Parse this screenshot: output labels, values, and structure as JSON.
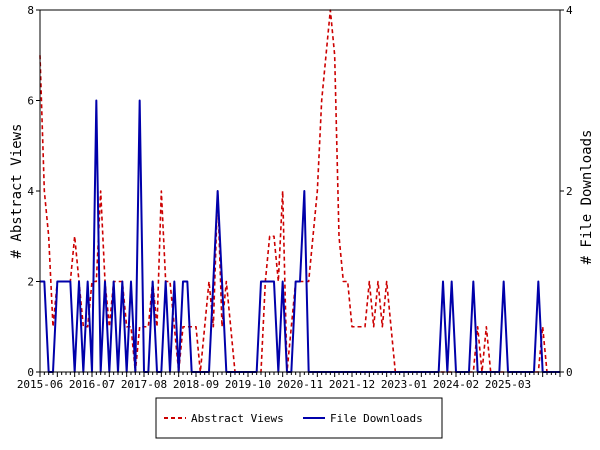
{
  "chart_data": {
    "type": "line",
    "title": "",
    "xlabel": "",
    "ylabel": "# Abstract Views",
    "y2label": "# File Downloads",
    "x_tick_labels": [
      "2015-06",
      "2016-07",
      "2017-08",
      "2018-09",
      "2019-10",
      "2020-11",
      "2021-12",
      "2023-01",
      "2024-02",
      "2025-03"
    ],
    "ylim": [
      0,
      8
    ],
    "y2lim": [
      0,
      4
    ],
    "y_ticks": [
      "0",
      "2",
      "4",
      "6",
      "8"
    ],
    "y2_ticks": [
      "0",
      "2",
      "4"
    ],
    "n_points": 121,
    "legend_position": "bottom-center",
    "grid": false,
    "series": [
      {
        "name": "Abstract Views",
        "axis": "left",
        "color": "#cc0000",
        "style": "dashed",
        "points": [
          [
            0,
            7
          ],
          [
            1,
            4
          ],
          [
            2,
            3
          ],
          [
            3,
            1
          ],
          [
            4,
            2
          ],
          [
            5,
            2
          ],
          [
            6,
            2
          ],
          [
            7,
            2
          ],
          [
            8,
            3
          ],
          [
            9,
            2
          ],
          [
            10,
            1
          ],
          [
            11,
            1
          ],
          [
            12,
            2
          ],
          [
            13,
            2
          ],
          [
            14,
            4
          ],
          [
            15,
            2
          ],
          [
            16,
            1
          ],
          [
            17,
            2
          ],
          [
            18,
            2
          ],
          [
            19,
            2
          ],
          [
            20,
            1
          ],
          [
            21,
            1
          ],
          [
            22,
            0
          ],
          [
            23,
            1
          ],
          [
            24,
            1
          ],
          [
            25,
            1
          ],
          [
            26,
            2
          ],
          [
            27,
            1
          ],
          [
            28,
            4
          ],
          [
            29,
            2
          ],
          [
            30,
            2
          ],
          [
            31,
            1
          ],
          [
            32,
            0
          ],
          [
            33,
            1
          ],
          [
            34,
            1
          ],
          [
            35,
            1
          ],
          [
            36,
            1
          ],
          [
            37,
            0
          ],
          [
            38,
            1
          ],
          [
            39,
            2
          ],
          [
            40,
            1
          ],
          [
            41,
            4
          ],
          [
            42,
            1
          ],
          [
            43,
            2
          ],
          [
            44,
            1
          ],
          [
            45,
            0
          ],
          [
            46,
            0
          ],
          [
            47,
            0
          ],
          [
            48,
            0
          ],
          [
            49,
            0
          ],
          [
            50,
            0
          ],
          [
            51,
            0
          ],
          [
            52,
            2
          ],
          [
            53,
            3
          ],
          [
            54,
            3
          ],
          [
            55,
            2
          ],
          [
            56,
            4
          ],
          [
            57,
            0
          ],
          [
            58,
            1
          ],
          [
            59,
            2
          ],
          [
            60,
            2
          ],
          [
            61,
            2
          ],
          [
            62,
            2
          ],
          [
            63,
            3
          ],
          [
            64,
            4
          ],
          [
            65,
            6
          ],
          [
            66,
            7
          ],
          [
            67,
            8
          ],
          [
            68,
            7
          ],
          [
            69,
            3
          ],
          [
            70,
            2
          ],
          [
            71,
            2
          ],
          [
            72,
            1
          ],
          [
            73,
            1
          ],
          [
            74,
            1
          ],
          [
            75,
            1
          ],
          [
            76,
            2
          ],
          [
            77,
            1
          ],
          [
            78,
            2
          ],
          [
            79,
            1
          ],
          [
            80,
            2
          ],
          [
            81,
            1
          ],
          [
            82,
            0
          ],
          [
            83,
            0
          ],
          [
            84,
            0
          ],
          [
            85,
            0
          ],
          [
            86,
            0
          ],
          [
            87,
            0
          ],
          [
            88,
            0
          ],
          [
            89,
            0
          ],
          [
            90,
            0
          ],
          [
            91,
            0
          ],
          [
            92,
            0
          ],
          [
            93,
            0
          ],
          [
            94,
            0
          ],
          [
            95,
            0
          ],
          [
            96,
            0
          ],
          [
            97,
            0
          ],
          [
            98,
            0
          ],
          [
            99,
            0
          ],
          [
            100,
            0
          ],
          [
            101,
            1
          ],
          [
            102,
            0
          ],
          [
            103,
            1
          ],
          [
            104,
            0
          ],
          [
            105,
            0
          ],
          [
            106,
            0
          ],
          [
            107,
            0
          ],
          [
            108,
            0
          ],
          [
            109,
            0
          ],
          [
            110,
            0
          ],
          [
            111,
            0
          ],
          [
            112,
            0
          ],
          [
            113,
            0
          ],
          [
            114,
            0
          ],
          [
            115,
            0
          ],
          [
            116,
            1
          ],
          [
            117,
            0
          ],
          [
            118,
            0
          ],
          [
            119,
            0
          ],
          [
            120,
            0
          ]
        ]
      },
      {
        "name": "File Downloads",
        "axis": "right",
        "color": "#0000aa",
        "style": "solid",
        "points": [
          [
            0,
            1
          ],
          [
            1,
            1
          ],
          [
            2,
            0
          ],
          [
            3,
            0
          ],
          [
            4,
            1
          ],
          [
            5,
            1
          ],
          [
            6,
            1
          ],
          [
            7,
            1
          ],
          [
            8,
            0
          ],
          [
            9,
            1
          ],
          [
            10,
            0
          ],
          [
            11,
            1
          ],
          [
            12,
            0
          ],
          [
            13,
            3
          ],
          [
            14,
            0
          ],
          [
            15,
            1
          ],
          [
            16,
            0
          ],
          [
            17,
            1
          ],
          [
            18,
            0
          ],
          [
            19,
            1
          ],
          [
            20,
            0
          ],
          [
            21,
            1
          ],
          [
            22,
            0
          ],
          [
            23,
            3
          ],
          [
            24,
            0
          ],
          [
            25,
            0
          ],
          [
            26,
            1
          ],
          [
            27,
            0
          ],
          [
            28,
            0
          ],
          [
            29,
            1
          ],
          [
            30,
            0
          ],
          [
            31,
            1
          ],
          [
            32,
            0
          ],
          [
            33,
            1
          ],
          [
            34,
            1
          ],
          [
            35,
            0
          ],
          [
            36,
            0
          ],
          [
            37,
            0
          ],
          [
            38,
            0
          ],
          [
            39,
            0
          ],
          [
            40,
            1
          ],
          [
            41,
            2
          ],
          [
            42,
            1
          ],
          [
            43,
            0
          ],
          [
            44,
            0
          ],
          [
            45,
            0
          ],
          [
            46,
            0
          ],
          [
            47,
            0
          ],
          [
            48,
            0
          ],
          [
            49,
            0
          ],
          [
            50,
            0
          ],
          [
            51,
            1
          ],
          [
            52,
            1
          ],
          [
            53,
            1
          ],
          [
            54,
            1
          ],
          [
            55,
            0
          ],
          [
            56,
            1
          ],
          [
            57,
            0
          ],
          [
            58,
            0
          ],
          [
            59,
            1
          ],
          [
            60,
            1
          ],
          [
            61,
            2
          ],
          [
            62,
            0
          ],
          [
            63,
            0
          ],
          [
            64,
            0
          ],
          [
            65,
            0
          ],
          [
            66,
            0
          ],
          [
            67,
            0
          ],
          [
            68,
            0
          ],
          [
            69,
            0
          ],
          [
            70,
            0
          ],
          [
            71,
            0
          ],
          [
            72,
            0
          ],
          [
            73,
            0
          ],
          [
            74,
            0
          ],
          [
            75,
            0
          ],
          [
            76,
            0
          ],
          [
            77,
            0
          ],
          [
            78,
            0
          ],
          [
            79,
            0
          ],
          [
            80,
            0
          ],
          [
            81,
            0
          ],
          [
            82,
            0
          ],
          [
            83,
            0
          ],
          [
            84,
            0
          ],
          [
            85,
            0
          ],
          [
            86,
            0
          ],
          [
            87,
            0
          ],
          [
            88,
            0
          ],
          [
            89,
            0
          ],
          [
            90,
            0
          ],
          [
            91,
            0
          ],
          [
            92,
            0
          ],
          [
            93,
            1
          ],
          [
            94,
            0
          ],
          [
            95,
            1
          ],
          [
            96,
            0
          ],
          [
            97,
            0
          ],
          [
            98,
            0
          ],
          [
            99,
            0
          ],
          [
            100,
            1
          ],
          [
            101,
            0
          ],
          [
            102,
            0
          ],
          [
            103,
            0
          ],
          [
            104,
            0
          ],
          [
            105,
            0
          ],
          [
            106,
            0
          ],
          [
            107,
            1
          ],
          [
            108,
            0
          ],
          [
            109,
            0
          ],
          [
            110,
            0
          ],
          [
            111,
            0
          ],
          [
            112,
            0
          ],
          [
            113,
            0
          ],
          [
            114,
            0
          ],
          [
            115,
            1
          ],
          [
            116,
            0
          ],
          [
            117,
            0
          ],
          [
            118,
            0
          ],
          [
            119,
            0
          ],
          [
            120,
            0
          ]
        ]
      }
    ]
  }
}
